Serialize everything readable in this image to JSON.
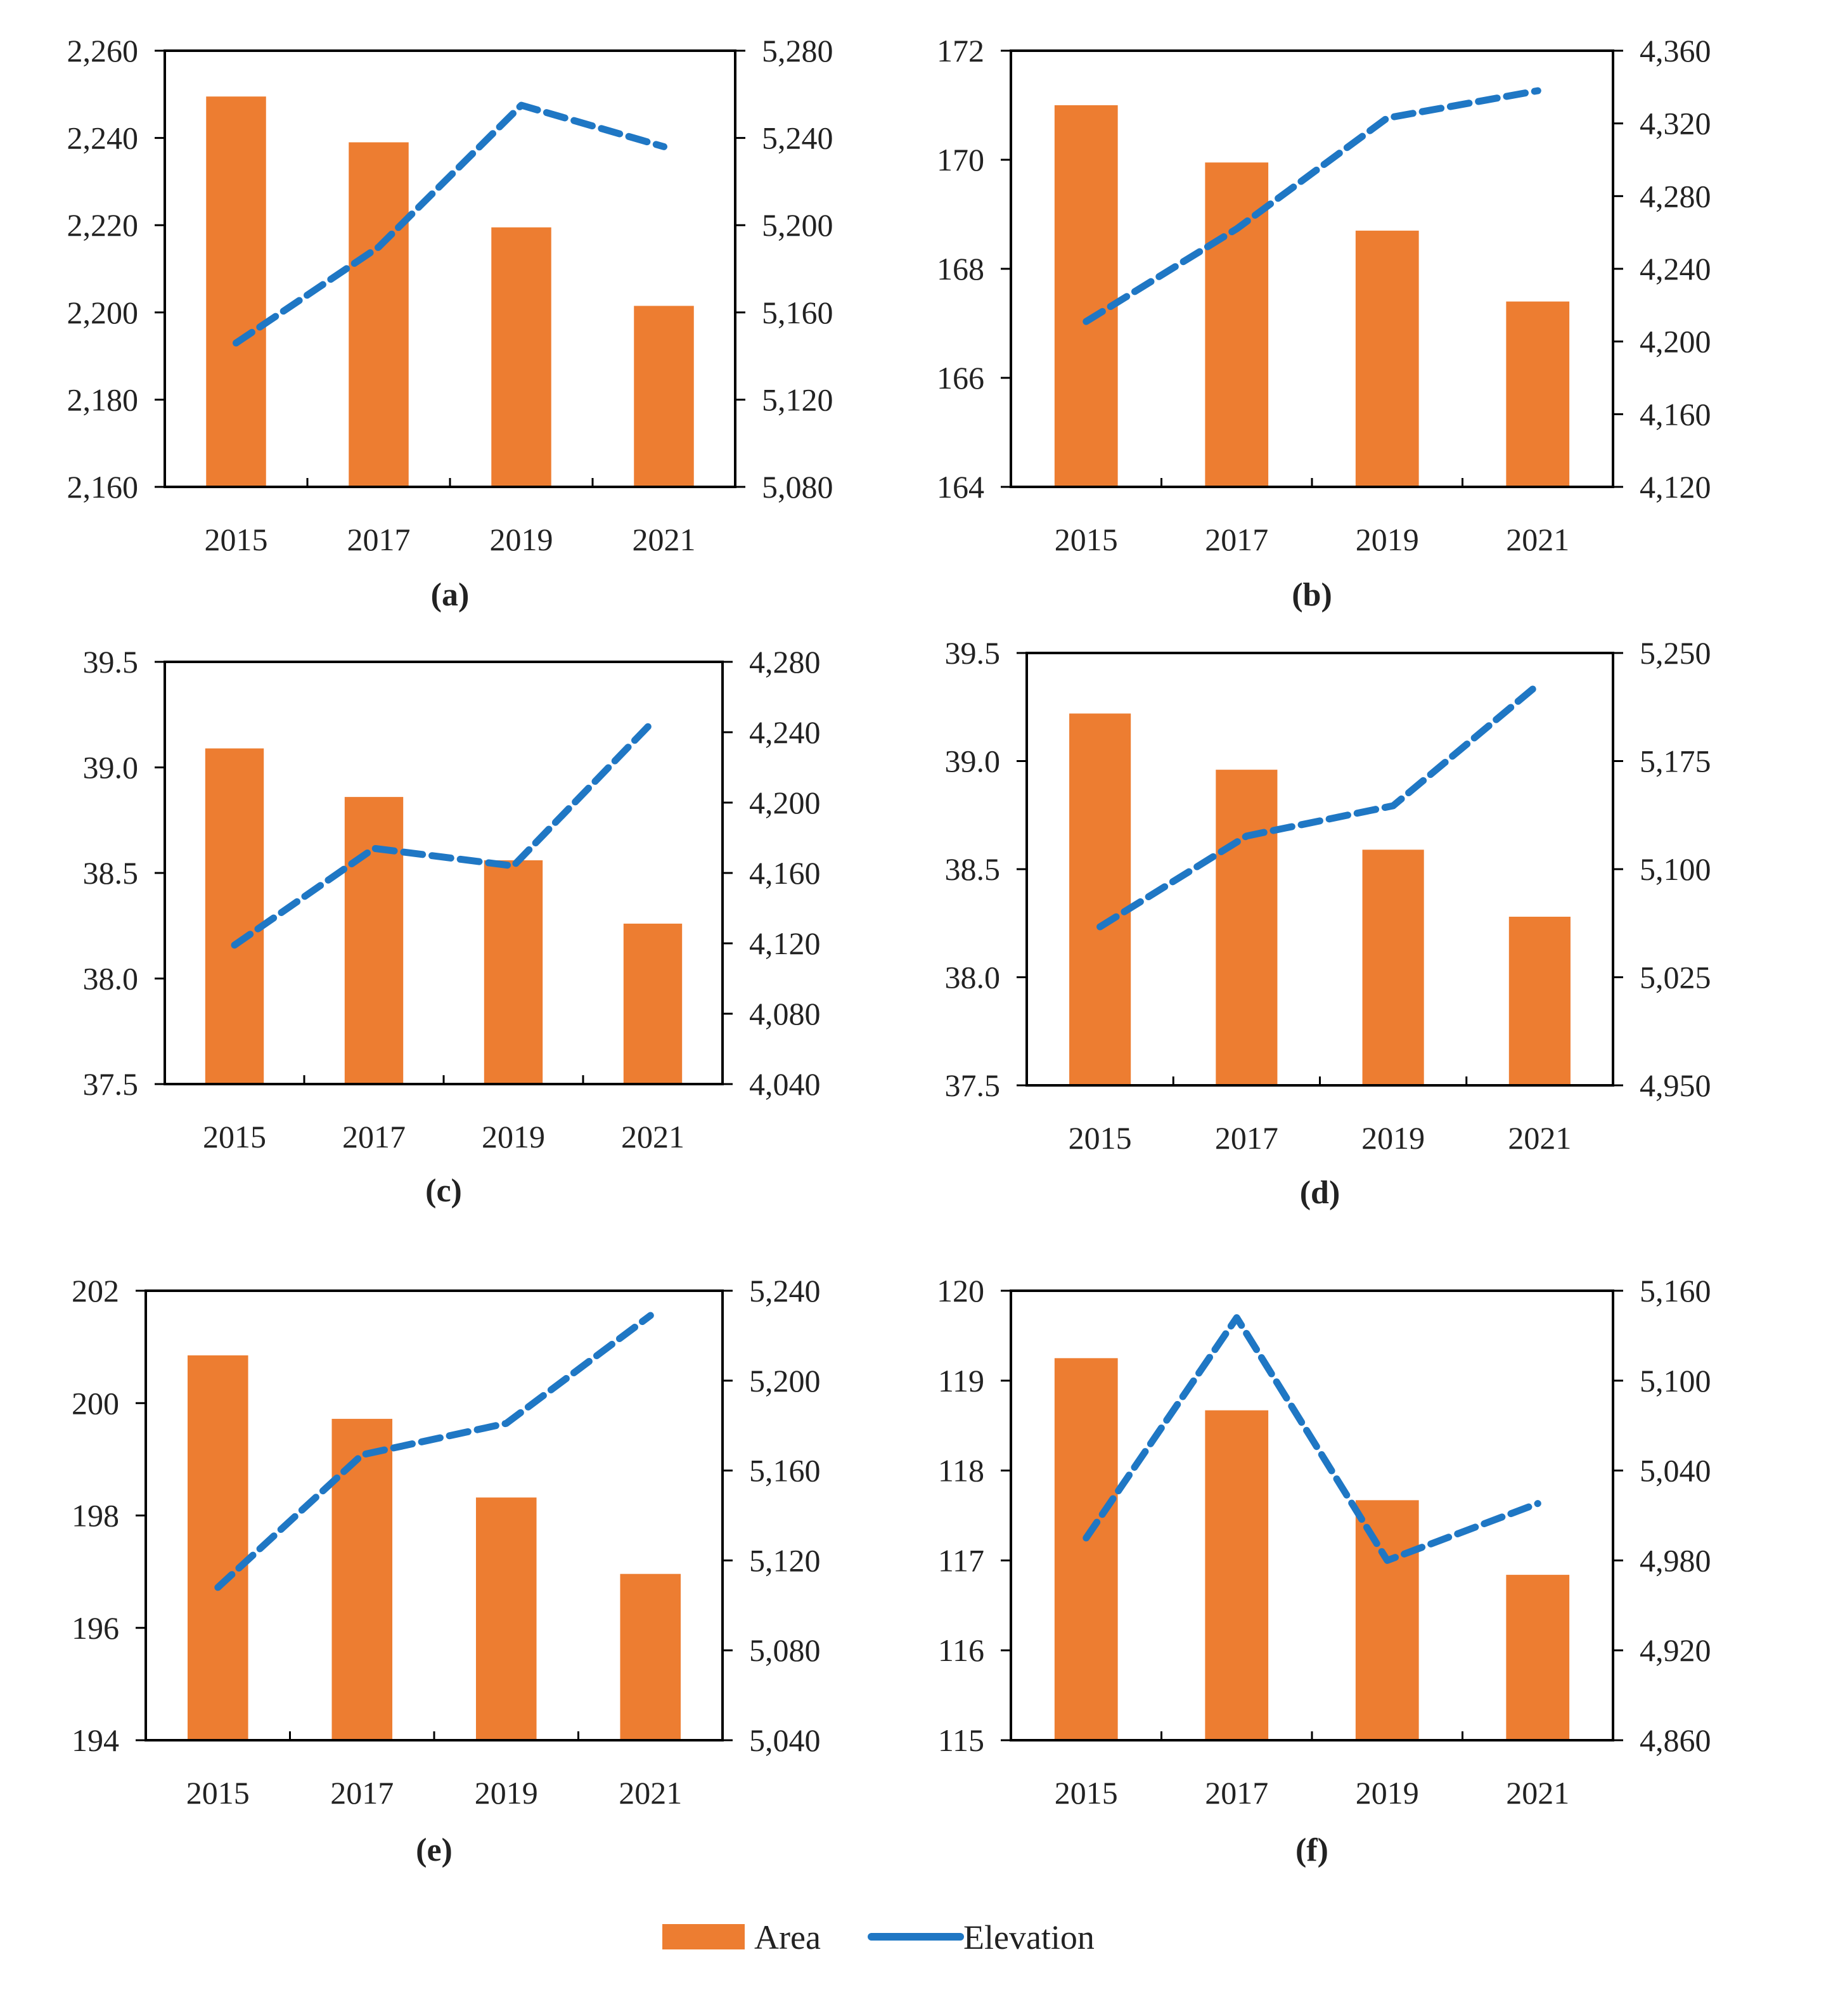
{
  "colors": {
    "area": "#ED7D31",
    "elevation": "#1F77C4",
    "axis": "#000000"
  },
  "legend": {
    "area_label": "Area",
    "elevation_label": "Elevation"
  },
  "chart_data": [
    {
      "type": "bar+line",
      "panel": "(a)",
      "categories": [
        "2015",
        "2017",
        "2019",
        "2021"
      ],
      "series": [
        {
          "name": "Area",
          "axis": "left",
          "values": [
            2249.5,
            2239.0,
            2219.5,
            2201.5
          ]
        },
        {
          "name": "Elevation",
          "axis": "right",
          "values": [
            5146,
            5190,
            5255,
            5236
          ]
        }
      ],
      "left_axis": {
        "range": [
          2160,
          2260
        ],
        "ticks": [
          2160,
          2180,
          2200,
          2220,
          2240,
          2260
        ],
        "labels": [
          "2,160",
          "2,180",
          "2,200",
          "2,220",
          "2,240",
          "2,260"
        ]
      },
      "right_axis": {
        "range": [
          5080,
          5280
        ],
        "ticks": [
          5080,
          5120,
          5160,
          5200,
          5240,
          5280
        ],
        "labels": [
          "5,080",
          "5,120",
          "5,160",
          "5,200",
          "5,240",
          "5,280"
        ]
      }
    },
    {
      "type": "bar+line",
      "panel": "(b)",
      "categories": [
        "2015",
        "2017",
        "2019",
        "2021"
      ],
      "series": [
        {
          "name": "Area",
          "axis": "left",
          "values": [
            171.0,
            169.95,
            168.7,
            167.4
          ]
        },
        {
          "name": "Elevation",
          "axis": "right",
          "values": [
            4211,
            4262,
            4323,
            4338
          ]
        }
      ],
      "left_axis": {
        "range": [
          164,
          172
        ],
        "ticks": [
          164,
          166,
          168,
          170,
          172
        ],
        "labels": [
          "164",
          "166",
          "168",
          "170",
          "172"
        ]
      },
      "right_axis": {
        "range": [
          4120,
          4360
        ],
        "ticks": [
          4120,
          4160,
          4200,
          4240,
          4280,
          4320,
          4360
        ],
        "labels": [
          "4,120",
          "4,160",
          "4,200",
          "4,240",
          "4,280",
          "4,320",
          "4,360"
        ]
      }
    },
    {
      "type": "bar+line",
      "panel": "(c)",
      "categories": [
        "2015",
        "2017",
        "2019",
        "2021"
      ],
      "series": [
        {
          "name": "Area",
          "axis": "left",
          "values": [
            39.09,
            38.86,
            38.56,
            38.26
          ]
        },
        {
          "name": "Elevation",
          "axis": "right",
          "values": [
            4119,
            4174,
            4164,
            4246
          ]
        }
      ],
      "left_axis": {
        "range": [
          37.5,
          39.5
        ],
        "ticks": [
          37.5,
          38.0,
          38.5,
          39.0,
          39.5
        ],
        "labels": [
          "37.5",
          "38.0",
          "38.5",
          "39.0",
          "39.5"
        ]
      },
      "right_axis": {
        "range": [
          4040,
          4280
        ],
        "ticks": [
          4040,
          4080,
          4120,
          4160,
          4200,
          4240,
          4280
        ],
        "labels": [
          "4,040",
          "4,080",
          "4,120",
          "4,160",
          "4,200",
          "4,240",
          "4,280"
        ]
      }
    },
    {
      "type": "bar+line",
      "panel": "(d)",
      "categories": [
        "2015",
        "2017",
        "2019",
        "2021"
      ],
      "series": [
        {
          "name": "Area",
          "axis": "left",
          "values": [
            39.22,
            38.96,
            38.59,
            38.28
          ]
        },
        {
          "name": "Elevation",
          "axis": "right",
          "values": [
            5060,
            5123,
            5144,
            5229
          ]
        }
      ],
      "left_axis": {
        "range": [
          37.5,
          39.5
        ],
        "ticks": [
          37.5,
          38.0,
          38.5,
          39.0,
          39.5
        ],
        "labels": [
          "37.5",
          "38.0",
          "38.5",
          "39.0",
          "39.5"
        ]
      },
      "right_axis": {
        "range": [
          4950,
          5250
        ],
        "ticks": [
          4950,
          5025,
          5100,
          5175,
          5250
        ],
        "labels": [
          "4,950",
          "5,025",
          "5,100",
          "5,175",
          "5,250"
        ]
      }
    },
    {
      "type": "bar+line",
      "panel": "(e)",
      "categories": [
        "2015",
        "2017",
        "2019",
        "2021"
      ],
      "series": [
        {
          "name": "Area",
          "axis": "left",
          "values": [
            200.85,
            199.72,
            198.32,
            196.96
          ]
        },
        {
          "name": "Elevation",
          "axis": "right",
          "values": [
            5108,
            5167,
            5181,
            5229
          ]
        }
      ],
      "left_axis": {
        "range": [
          194,
          202
        ],
        "ticks": [
          194,
          196,
          198,
          200,
          202
        ],
        "labels": [
          "194",
          "196",
          "198",
          "200",
          "202"
        ]
      },
      "right_axis": {
        "range": [
          5040,
          5240
        ],
        "ticks": [
          5040,
          5080,
          5120,
          5160,
          5200,
          5240
        ],
        "labels": [
          "5,040",
          "5,080",
          "5,120",
          "5,160",
          "5,200",
          "5,240"
        ]
      }
    },
    {
      "type": "bar+line",
      "panel": "(f)",
      "categories": [
        "2015",
        "2017",
        "2019",
        "2021"
      ],
      "series": [
        {
          "name": "Area",
          "axis": "left",
          "values": [
            119.25,
            118.67,
            117.67,
            116.84
          ]
        },
        {
          "name": "Elevation",
          "axis": "right",
          "values": [
            4995,
            5142,
            4980,
            5018
          ]
        }
      ],
      "left_axis": {
        "range": [
          115,
          120
        ],
        "ticks": [
          115,
          116,
          117,
          118,
          119,
          120
        ],
        "labels": [
          "115",
          "116",
          "117",
          "118",
          "119",
          "120"
        ]
      },
      "right_axis": {
        "range": [
          4860,
          5160
        ],
        "ticks": [
          4860,
          4920,
          4980,
          5040,
          5100,
          5160
        ],
        "labels": [
          "4,860",
          "4,920",
          "4,980",
          "5,040",
          "5,100",
          "5,160"
        ]
      }
    }
  ]
}
